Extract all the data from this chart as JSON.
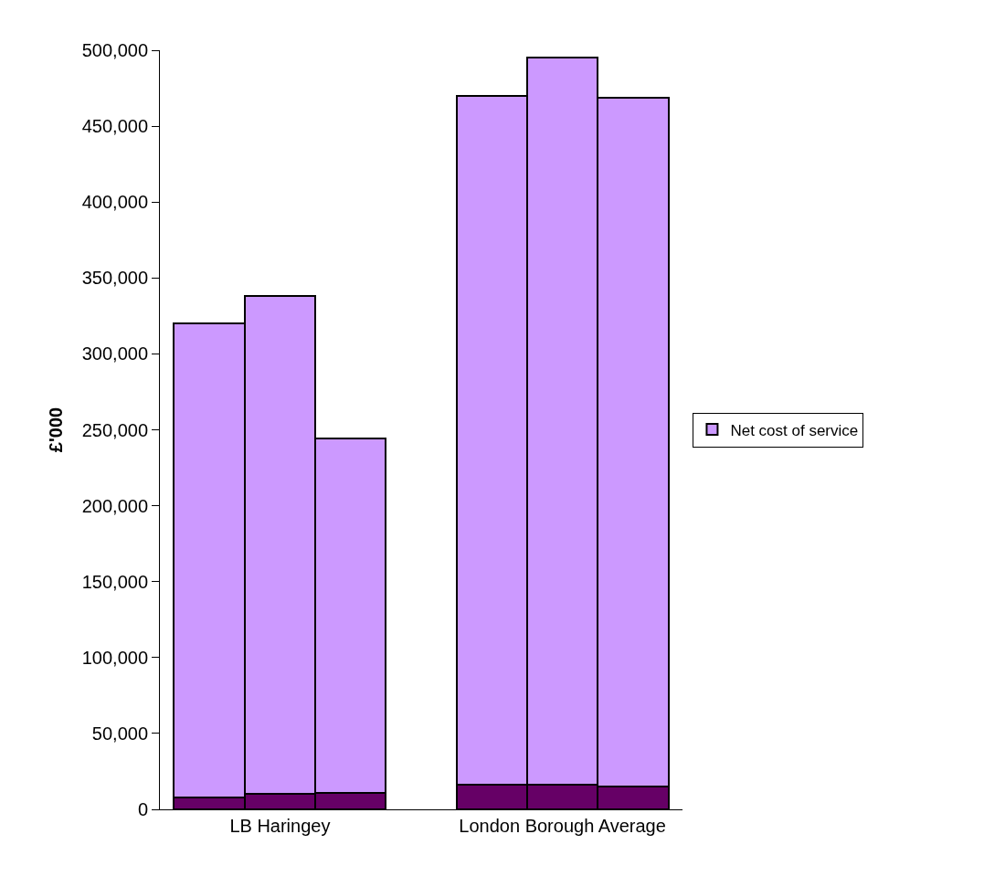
{
  "chart_data": {
    "type": "bar",
    "stacked": true,
    "ylabel": "£'000",
    "categories": [
      null,
      "LB Haringey",
      null,
      null,
      null,
      "London Borough Average",
      null
    ],
    "series": [
      {
        "color": "#660066",
        "values": [
          8000,
          10000,
          11000,
          null,
          16000,
          16500,
          15000
        ]
      },
      {
        "name": "Net cost of service",
        "color": "#cc99ff",
        "values": [
          312000,
          328000,
          233500,
          null,
          454000,
          478500,
          453500
        ]
      }
    ],
    "ylim": [
      0,
      500000
    ],
    "yticks": [
      {
        "value": 0,
        "label": "0"
      },
      {
        "value": 50000,
        "label": "50,000"
      },
      {
        "value": 100000,
        "label": "100,000"
      },
      {
        "value": 150000,
        "label": "150,000"
      },
      {
        "value": 200000,
        "label": "200,000"
      },
      {
        "value": 250000,
        "label": "250,000"
      },
      {
        "value": 300000,
        "label": "300,000"
      },
      {
        "value": 350000,
        "label": "350,000"
      },
      {
        "value": 400000,
        "label": "400,000"
      },
      {
        "value": 450000,
        "label": "450,000"
      },
      {
        "value": 500000,
        "label": "500,000"
      }
    ],
    "legend": "right"
  }
}
